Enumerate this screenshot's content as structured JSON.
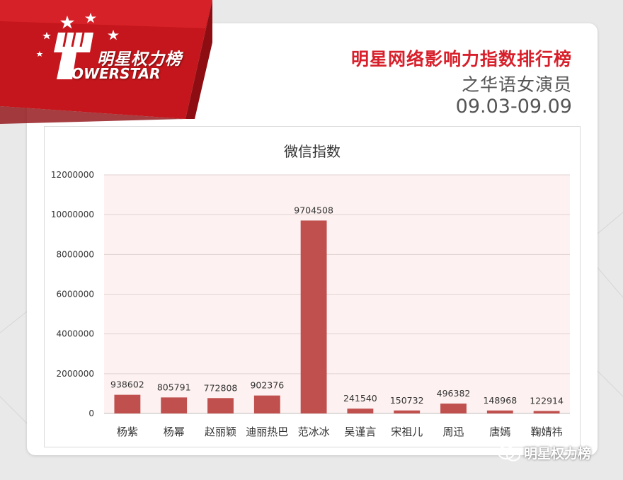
{
  "brand": {
    "name_cn": "明星权力榜",
    "name_en": "OWERSTAR"
  },
  "header": {
    "title": "明星网络影响力指数排行榜",
    "subtitle": "之华语女演员",
    "date_range": "09.03-09.09"
  },
  "chart_data": {
    "type": "bar",
    "title": "微信指数",
    "categories": [
      "杨紫",
      "杨幂",
      "赵丽颖",
      "迪丽热巴",
      "范冰冰",
      "吴谨言",
      "宋祖儿",
      "周迅",
      "唐嫣",
      "鞠婧祎"
    ],
    "values": [
      938602,
      805791,
      772808,
      902376,
      9704508,
      241540,
      150732,
      496382,
      148968,
      122914
    ],
    "ylim": [
      0,
      12000000
    ],
    "yticks": [
      0,
      2000000,
      4000000,
      6000000,
      8000000,
      10000000,
      12000000
    ],
    "grid": true,
    "bar_color": "#c0504d",
    "plot_bg": "#fdf1f1",
    "legend": "none"
  },
  "watermark": {
    "text": "明星权力榜",
    "icon": "wechat-icon"
  },
  "colors": {
    "accent": "#d7202b",
    "banner_dark": "#a50f16"
  }
}
